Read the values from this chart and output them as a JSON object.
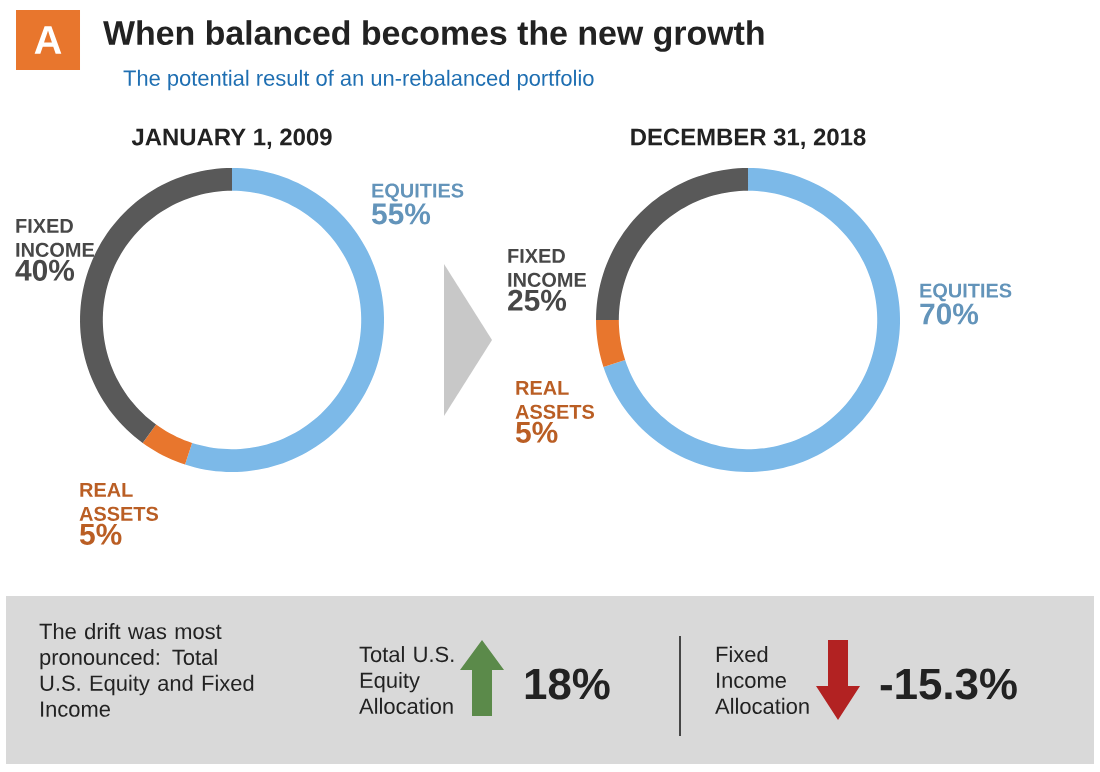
{
  "chart_data": [
    {
      "type": "other",
      "title": "When balanced becomes the new growth",
      "subtitle": "The potential result of an un-rebalanced portfolio",
      "annotations": [
        "A"
      ]
    },
    {
      "type": "donut",
      "title": "JANUARY 1, 2009",
      "categories": [
        "EQUITIES",
        "REAL ASSETS",
        "FIXED INCOME"
      ],
      "values": [
        55,
        5,
        40
      ],
      "colors": [
        "#7cb9e8",
        "#e8762d",
        "#595959"
      ],
      "value_labels": [
        "55%",
        "5%",
        "40%"
      ]
    },
    {
      "type": "donut",
      "title": "DECEMBER 31, 2018",
      "categories": [
        "EQUITIES",
        "REAL ASSETS",
        "FIXED INCOME"
      ],
      "values": [
        70,
        5,
        25
      ],
      "colors": [
        "#7cb9e8",
        "#e8762d",
        "#595959"
      ],
      "value_labels": [
        "70%",
        "5%",
        "25%"
      ]
    },
    {
      "type": "other",
      "annotations": [
        "The drift was most pronounced: Total U.S. Equity and Fixed Income",
        "Total U.S. Equity Allocation",
        "18%",
        "Fixed Income Allocation",
        "-15.3%"
      ]
    }
  ]
}
